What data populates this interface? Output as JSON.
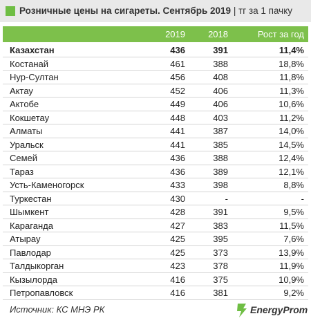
{
  "header": {
    "title": "Розничные цены на сигареты. Сентябрь 2019",
    "unit": "| тг за 1 пачку"
  },
  "table": {
    "columns": [
      "2019",
      "2018",
      "Рост за год"
    ],
    "rows": [
      [
        "Казахстан",
        "436",
        "391",
        "11,4%"
      ],
      [
        "Костанай",
        "461",
        "388",
        "18,8%"
      ],
      [
        "Нур-Султан",
        "456",
        "408",
        "11,8%"
      ],
      [
        "Актау",
        "452",
        "406",
        "11,3%"
      ],
      [
        "Актобе",
        "449",
        "406",
        "10,6%"
      ],
      [
        "Кокшетау",
        "448",
        "403",
        "11,2%"
      ],
      [
        "Алматы",
        "441",
        "387",
        "14,0%"
      ],
      [
        "Уральск",
        "441",
        "385",
        "14,5%"
      ],
      [
        "Семей",
        "436",
        "388",
        "12,4%"
      ],
      [
        "Тараз",
        "436",
        "389",
        "12,1%"
      ],
      [
        "Усть-Каменогорск",
        "433",
        "398",
        "8,8%"
      ],
      [
        "Туркестан",
        "430",
        "-",
        "-"
      ],
      [
        "Шымкент",
        "428",
        "391",
        "9,5%"
      ],
      [
        "Караганда",
        "427",
        "383",
        "11,5%"
      ],
      [
        "Атырау",
        "425",
        "395",
        "7,6%"
      ],
      [
        "Павлодар",
        "425",
        "373",
        "13,9%"
      ],
      [
        "Талдыкорган",
        "423",
        "378",
        "11,9%"
      ],
      [
        "Кызылорда",
        "416",
        "375",
        "10,9%"
      ],
      [
        "Петропавловск",
        "416",
        "381",
        "9,2%"
      ]
    ]
  },
  "footer": {
    "source": "Источник: КС МНЭ РК",
    "logo": "EnergyProm"
  }
}
